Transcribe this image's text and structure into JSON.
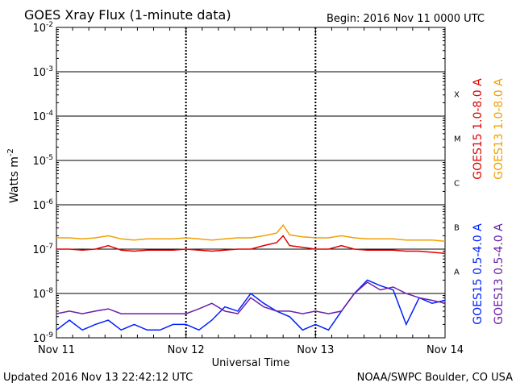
{
  "chart_data": {
    "type": "line",
    "title": "GOES Xray Flux (1-minute data)",
    "begin_label": "Begin:  2016 Nov 11 0000 UTC",
    "ylabel": "Watts m",
    "ylabel_sup": "-2",
    "xlabel": "Universal Time",
    "footer_left": "Updated 2016 Nov 13 22:42:12 UTC",
    "footer_right": "NOAA/SWPC Boulder, CO USA",
    "y_scale": "log",
    "ylim": [
      1e-09,
      0.01
    ],
    "y_ticks": [
      {
        "base": "10",
        "exp": "-2"
      },
      {
        "base": "10",
        "exp": "-3"
      },
      {
        "base": "10",
        "exp": "-4"
      },
      {
        "base": "10",
        "exp": "-5"
      },
      {
        "base": "10",
        "exp": "-6"
      },
      {
        "base": "10",
        "exp": "-7"
      },
      {
        "base": "10",
        "exp": "-8"
      },
      {
        "base": "10",
        "exp": "-9"
      }
    ],
    "x_ticks": [
      "Nov 11",
      "Nov 12",
      "Nov 13",
      "Nov 14"
    ],
    "xlim_days": [
      0,
      3
    ],
    "flare_classes": [
      "X",
      "M",
      "C",
      "B",
      "A"
    ],
    "grid": true,
    "series": [
      {
        "name": "GOES15 1.0-8.0 A",
        "color": "#e00000",
        "x": [
          0,
          0.1,
          0.2,
          0.3,
          0.4,
          0.5,
          0.6,
          0.7,
          0.8,
          0.9,
          1.0,
          1.1,
          1.2,
          1.3,
          1.4,
          1.5,
          1.6,
          1.7,
          1.75,
          1.8,
          1.9,
          2.0,
          2.1,
          2.2,
          2.3,
          2.4,
          2.5,
          2.6,
          2.7,
          2.8,
          2.9,
          3.0
        ],
        "values": [
          1e-07,
          1e-07,
          9.5e-08,
          1e-07,
          1.2e-07,
          9.5e-08,
          9e-08,
          9.5e-08,
          9.5e-08,
          9.5e-08,
          1e-07,
          9.5e-08,
          9e-08,
          9.5e-08,
          1e-07,
          1e-07,
          1.2e-07,
          1.4e-07,
          2e-07,
          1.2e-07,
          1.1e-07,
          1e-07,
          1e-07,
          1.2e-07,
          1e-07,
          9.5e-08,
          9.5e-08,
          9.5e-08,
          9e-08,
          9e-08,
          8.5e-08,
          8e-08
        ]
      },
      {
        "name": "GOES13 1.0-8.0 A",
        "color": "#f0a000",
        "x": [
          0,
          0.1,
          0.2,
          0.3,
          0.4,
          0.5,
          0.6,
          0.7,
          0.8,
          0.9,
          1.0,
          1.1,
          1.2,
          1.3,
          1.4,
          1.5,
          1.6,
          1.7,
          1.75,
          1.8,
          1.9,
          2.0,
          2.1,
          2.2,
          2.3,
          2.4,
          2.5,
          2.6,
          2.7,
          2.8,
          2.9,
          3.0
        ],
        "values": [
          1.8e-07,
          1.8e-07,
          1.7e-07,
          1.8e-07,
          2e-07,
          1.7e-07,
          1.6e-07,
          1.7e-07,
          1.7e-07,
          1.7e-07,
          1.8e-07,
          1.7e-07,
          1.6e-07,
          1.7e-07,
          1.8e-07,
          1.8e-07,
          2e-07,
          2.3e-07,
          3.5e-07,
          2.1e-07,
          1.9e-07,
          1.8e-07,
          1.8e-07,
          2e-07,
          1.8e-07,
          1.7e-07,
          1.7e-07,
          1.7e-07,
          1.6e-07,
          1.6e-07,
          1.6e-07,
          1.5e-07
        ]
      },
      {
        "name": "GOES15 0.5-4.0 A",
        "color": "#0020ff",
        "x": [
          0,
          0.1,
          0.2,
          0.3,
          0.4,
          0.5,
          0.6,
          0.7,
          0.8,
          0.9,
          1.0,
          1.1,
          1.2,
          1.3,
          1.4,
          1.5,
          1.6,
          1.7,
          1.8,
          1.9,
          2.0,
          2.1,
          2.2,
          2.3,
          2.4,
          2.5,
          2.6,
          2.7,
          2.8,
          2.9,
          3.0
        ],
        "values": [
          1.5e-09,
          2.5e-09,
          1.5e-09,
          2e-09,
          2.5e-09,
          1.5e-09,
          2e-09,
          1.5e-09,
          1.5e-09,
          2e-09,
          2e-09,
          1.5e-09,
          2.5e-09,
          5e-09,
          4e-09,
          1e-08,
          6e-09,
          4e-09,
          3e-09,
          1.5e-09,
          2e-09,
          1.5e-09,
          4e-09,
          1e-08,
          2e-08,
          1.5e-08,
          1.2e-08,
          2e-09,
          8e-09,
          6e-09,
          7e-09
        ]
      },
      {
        "name": "GOES13 0.5-4.0 A",
        "color": "#6a1fa8",
        "x": [
          0,
          0.1,
          0.2,
          0.3,
          0.4,
          0.5,
          0.6,
          0.7,
          0.8,
          0.9,
          1.0,
          1.1,
          1.2,
          1.3,
          1.4,
          1.5,
          1.6,
          1.7,
          1.8,
          1.9,
          2.0,
          2.1,
          2.2,
          2.3,
          2.4,
          2.5,
          2.6,
          2.7,
          2.8,
          2.9,
          3.0
        ],
        "values": [
          3.5e-09,
          4e-09,
          3.5e-09,
          4e-09,
          4.5e-09,
          3.5e-09,
          3.5e-09,
          3.5e-09,
          3.5e-09,
          3.5e-09,
          3.5e-09,
          4.5e-09,
          6e-09,
          4e-09,
          3.5e-09,
          8e-09,
          5e-09,
          4e-09,
          4e-09,
          3.5e-09,
          4e-09,
          3.5e-09,
          4e-09,
          1e-08,
          1.8e-08,
          1.2e-08,
          1.4e-08,
          1e-08,
          8e-09,
          7e-09,
          6e-09
        ]
      }
    ]
  }
}
